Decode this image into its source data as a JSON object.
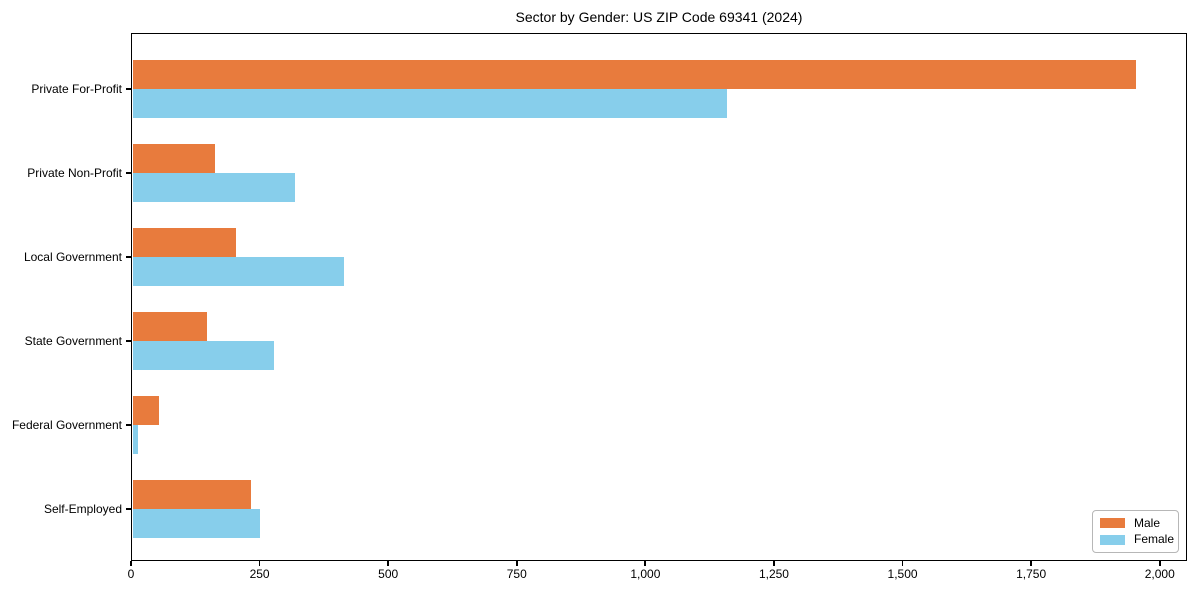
{
  "chart_data": {
    "type": "bar",
    "orientation": "horizontal",
    "title": "Sector by Gender: US ZIP Code 69341 (2024)",
    "categories": [
      "Private For-Profit",
      "Private Non-Profit",
      "Local Government",
      "State Government",
      "Federal Government",
      "Self-Employed"
    ],
    "series": [
      {
        "name": "Male",
        "color": "#E87B3D",
        "values": [
          1950,
          160,
          200,
          145,
          50,
          230
        ]
      },
      {
        "name": "Female",
        "color": "#87CEEB",
        "values": [
          1155,
          315,
          410,
          275,
          10,
          248
        ]
      }
    ],
    "xlabel": "",
    "ylabel": "",
    "xlim": [
      0,
      2053
    ],
    "x_ticks": [
      {
        "value": 0,
        "label": "0"
      },
      {
        "value": 250,
        "label": "250"
      },
      {
        "value": 500,
        "label": "500"
      },
      {
        "value": 750,
        "label": "750"
      },
      {
        "value": 1000,
        "label": "1,000"
      },
      {
        "value": 1250,
        "label": "1,250"
      },
      {
        "value": 1500,
        "label": "1,500"
      },
      {
        "value": 1750,
        "label": "1,750"
      },
      {
        "value": 2000,
        "label": "2,000"
      }
    ],
    "grid": false,
    "legend_position": "lower right"
  },
  "colors": {
    "background": "#ffffff",
    "spine": "#000000",
    "male": "#E87B3D",
    "female": "#87CEEB",
    "legend_border": "#b7b7b7"
  }
}
